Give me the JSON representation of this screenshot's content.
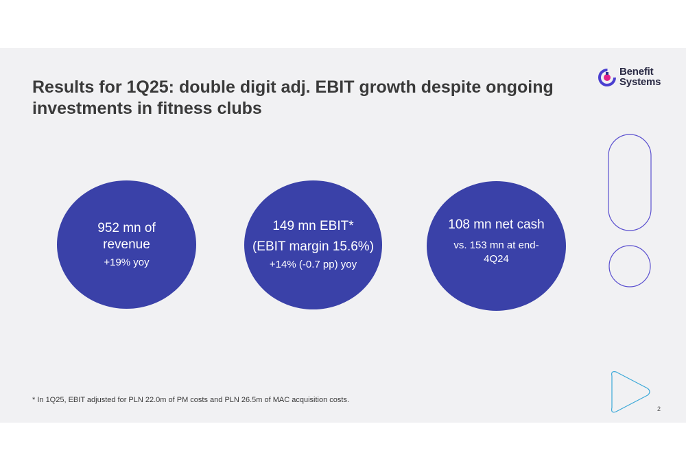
{
  "slide": {
    "title": "Results for 1Q25: double digit adj. EBIT growth despite ongoing investments in fitness clubs",
    "logo": {
      "line1": "Benefit",
      "line2": "Systems",
      "icon": "benefit-systems-logo-icon"
    },
    "metrics": [
      {
        "headline": "952 mn of revenue",
        "sub": "+19% yoy"
      },
      {
        "headline": "149 mn EBIT*",
        "headline2": "(EBIT margin 15.6%)",
        "sub": "+14% (-0.7 pp) yoy"
      },
      {
        "headline": "108 mn net cash",
        "sub": "vs. 153 mn at end-4Q24"
      }
    ],
    "footnote": "* In 1Q25, EBIT adjusted for PLN 22.0m of PM costs and PLN 26.5m of MAC acquisition costs.",
    "page_number": "2",
    "colors": {
      "bubble": "#3a41a8",
      "deco_purple": "#5a4fcf",
      "deco_teal": "#3aa8d8"
    }
  }
}
